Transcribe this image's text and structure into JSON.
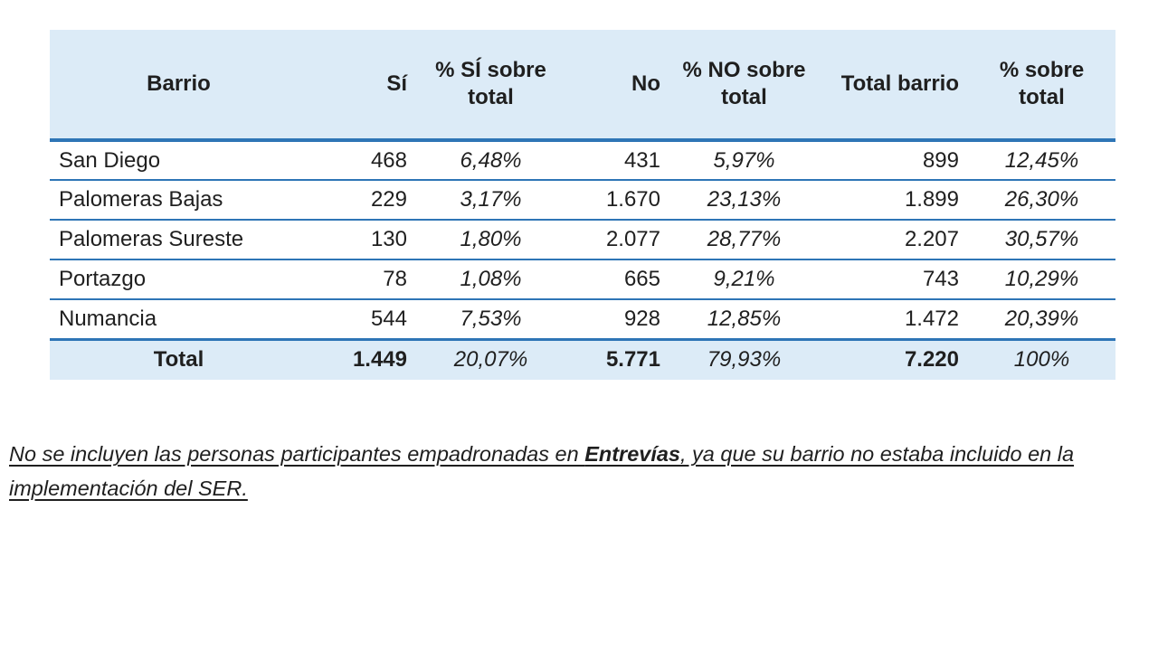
{
  "table": {
    "columns": [
      "Barrio",
      "Sí",
      "% SÍ sobre total",
      "No",
      "% NO sobre total",
      "Total barrio",
      "% sobre total"
    ],
    "rows": [
      {
        "barrio": "San Diego",
        "si": "468",
        "pct_si": "6,48%",
        "no": "431",
        "pct_no": "5,97%",
        "total_barrio": "899",
        "pct_total": "12,45%"
      },
      {
        "barrio": "Palomeras Bajas",
        "si": "229",
        "pct_si": "3,17%",
        "no": "1.670",
        "pct_no": "23,13%",
        "total_barrio": "1.899",
        "pct_total": "26,30%"
      },
      {
        "barrio": "Palomeras Sureste",
        "si": "130",
        "pct_si": "1,80%",
        "no": "2.077",
        "pct_no": "28,77%",
        "total_barrio": "2.207",
        "pct_total": "30,57%"
      },
      {
        "barrio": "Portazgo",
        "si": "78",
        "pct_si": "1,08%",
        "no": "665",
        "pct_no": "9,21%",
        "total_barrio": "743",
        "pct_total": "10,29%"
      },
      {
        "barrio": "Numancia",
        "si": "544",
        "pct_si": "7,53%",
        "no": "928",
        "pct_no": "12,85%",
        "total_barrio": "1.472",
        "pct_total": "20,39%"
      }
    ],
    "total_row": {
      "barrio": "Total",
      "si": "1.449",
      "pct_si": "20,07%",
      "no": "5.771",
      "pct_no": "79,93%",
      "total_barrio": "7.220",
      "pct_total": "100%"
    }
  },
  "footnote": {
    "line1_prefix": "No se incluyen las personas participantes empadronadas en ",
    "line1_bold": "Entrevías",
    "line1_suffix": ", ya que su barrio no estaba incluido en la",
    "line2": "implementación del SER."
  },
  "colors": {
    "header_fill": "#dcebf7",
    "border_blue": "#2e75b6",
    "text": "#1f1f1f"
  }
}
